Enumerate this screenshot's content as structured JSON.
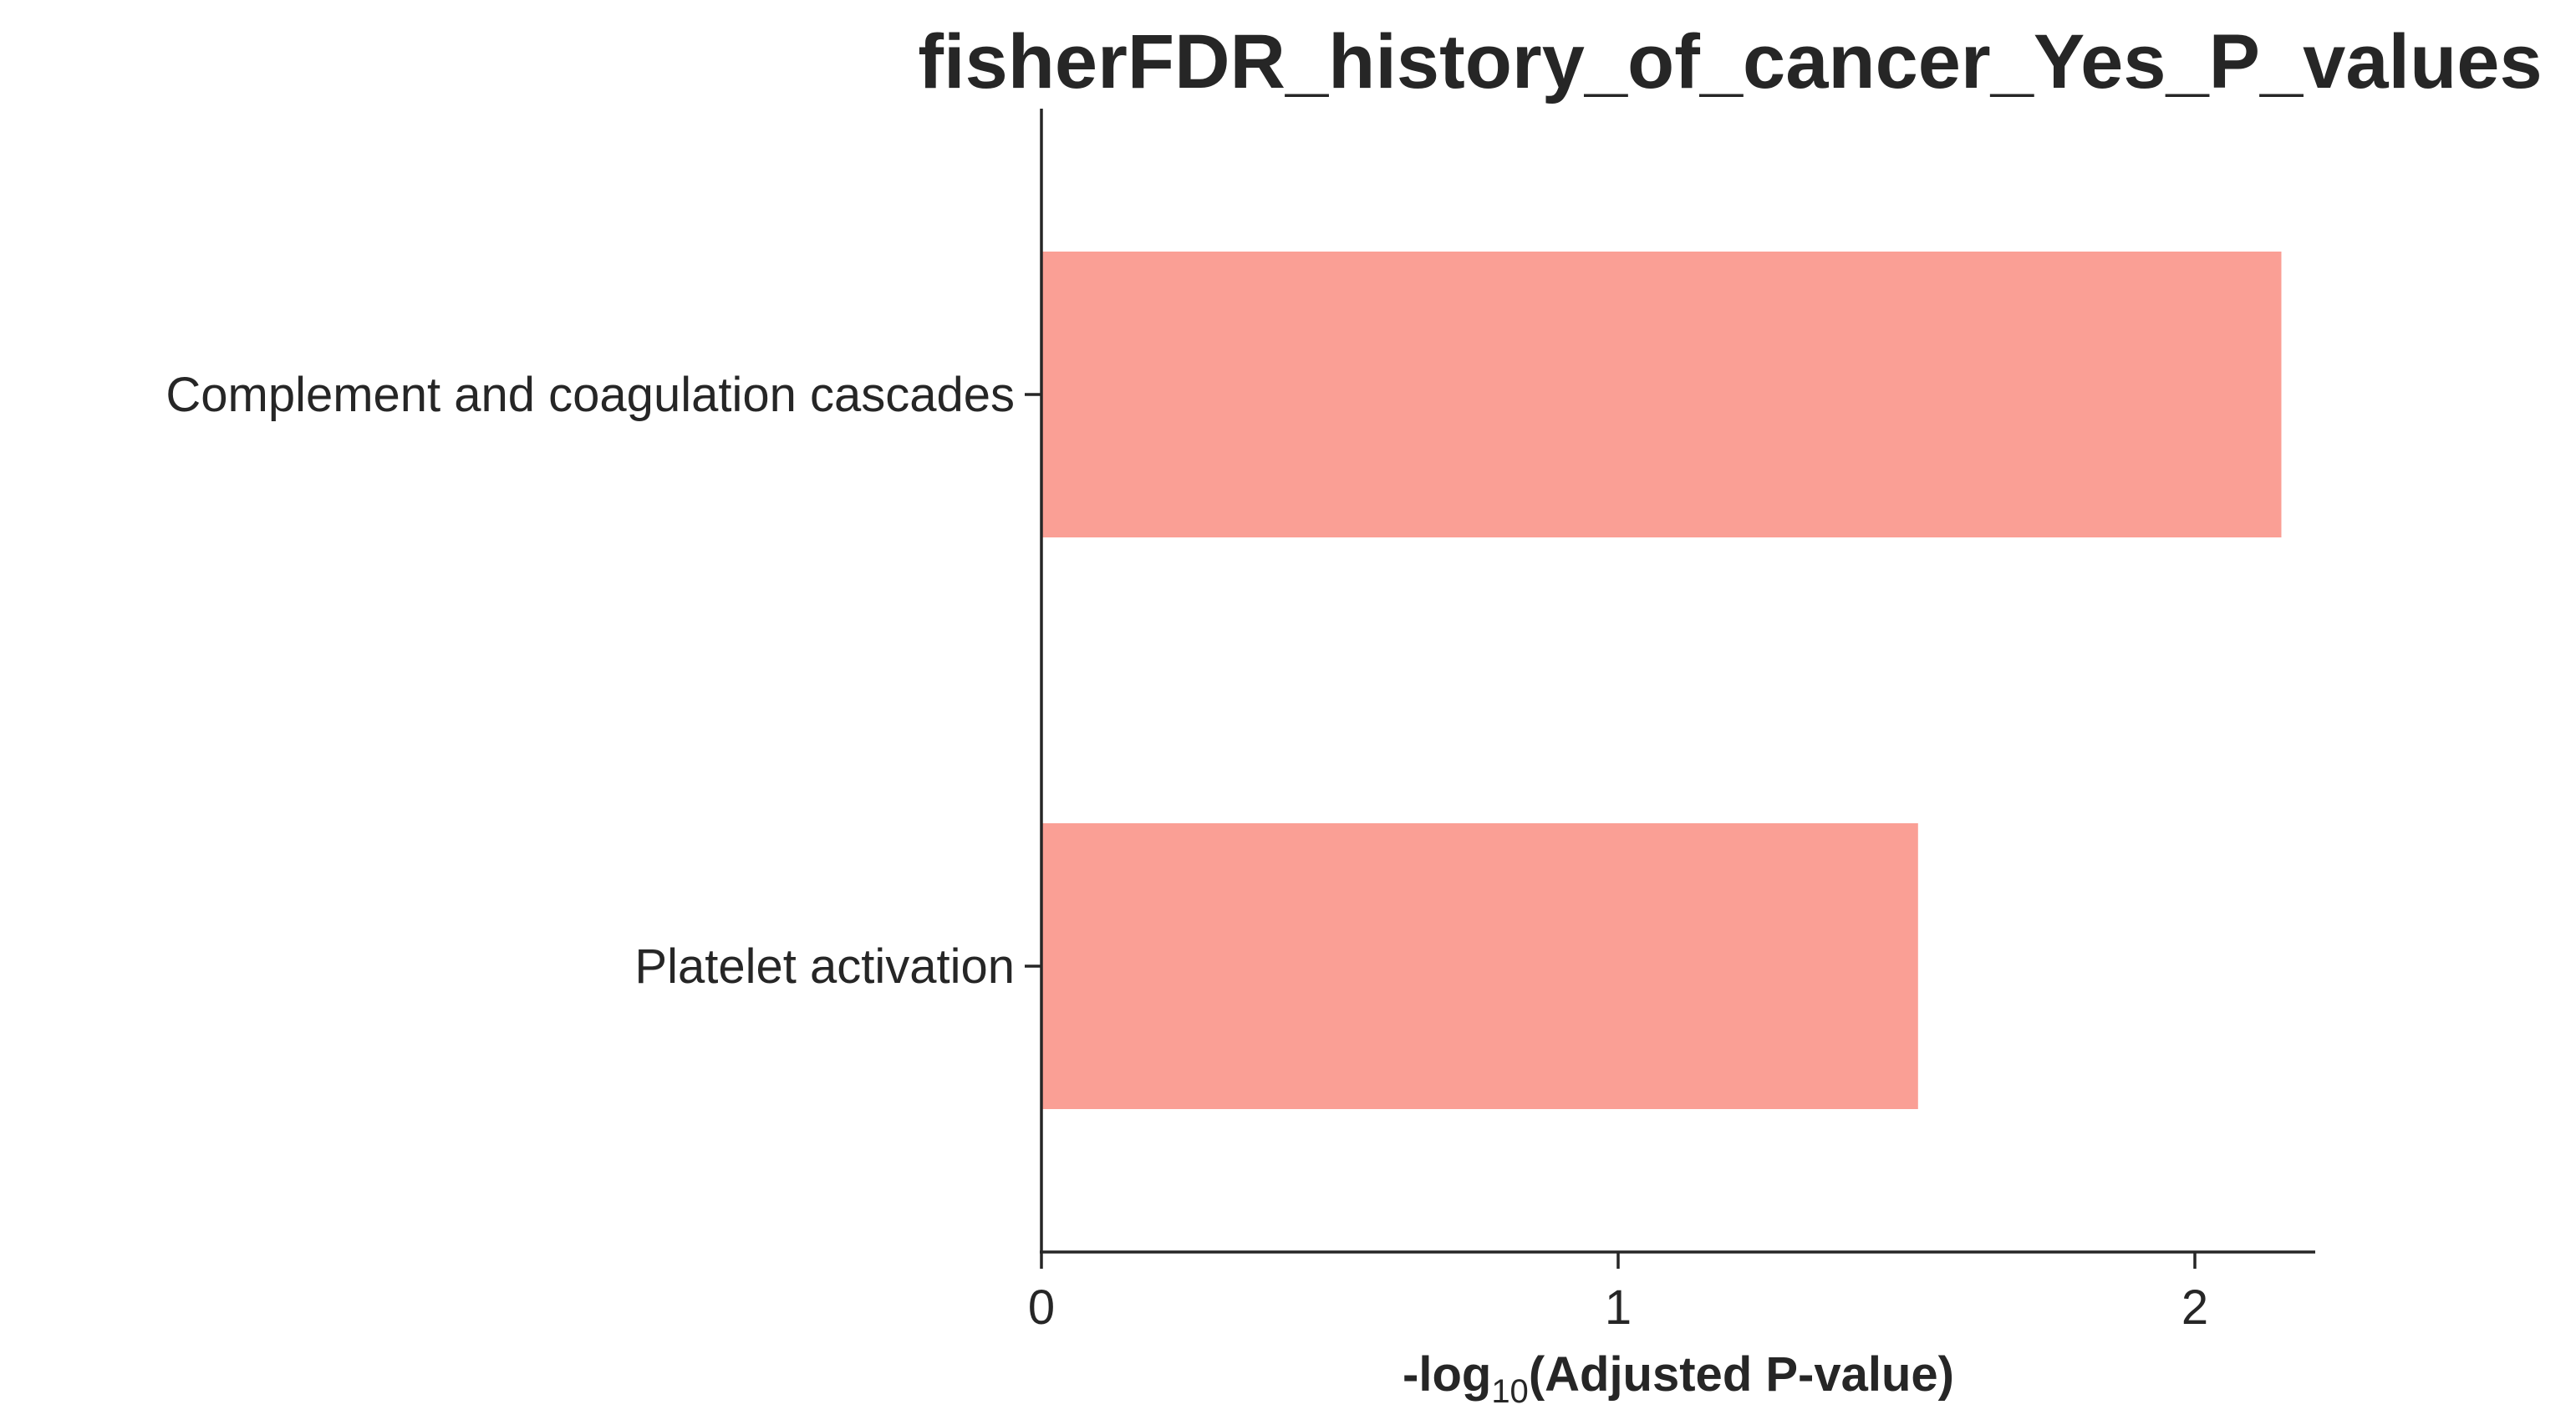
{
  "chart_data": {
    "type": "bar",
    "orientation": "horizontal",
    "title": "fisherFDR_history_of_cancer_Yes_P_values",
    "categories": [
      "Complement and coagulation cascades",
      "Platelet activation"
    ],
    "values": [
      2.15,
      1.52
    ],
    "xlabel": {
      "prefix": "-log",
      "subscript": "10",
      "suffix": "(Adjusted P-value)"
    },
    "xlim": [
      0,
      2.26
    ],
    "xticks": [
      {
        "value": 0,
        "label": "0"
      },
      {
        "value": 1,
        "label": "1"
      },
      {
        "value": 2,
        "label": "2"
      }
    ],
    "bar_color": "#fa9f95",
    "axis_color": "#262626",
    "grid": false
  }
}
